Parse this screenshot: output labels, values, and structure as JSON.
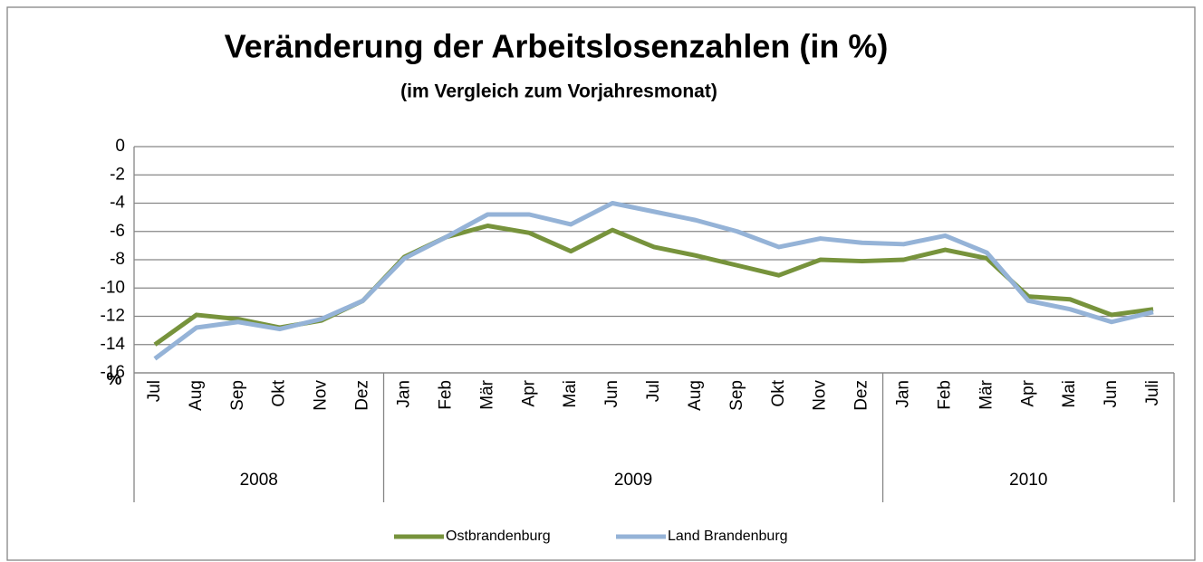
{
  "chart_data": {
    "type": "line",
    "title": "Veränderung der Arbeitslosenzahlen (in %)",
    "subtitle": "(im Vergleich zum Vorjahresmonat)",
    "y_label": "%",
    "category_groups": [
      {
        "label": "2008",
        "categories": [
          "Jul",
          "Aug",
          "Sep",
          "Okt",
          "Nov",
          "Dez"
        ]
      },
      {
        "label": "2009",
        "categories": [
          "Jan",
          "Feb",
          "Mär",
          "Apr",
          "Mai",
          "Jun",
          "Jul",
          "Aug",
          "Sep",
          "Okt",
          "Nov",
          "Dez"
        ]
      },
      {
        "label": "2010",
        "categories": [
          "Jan",
          "Feb",
          "Mär",
          "Apr",
          "Mai",
          "Jun",
          "Juli"
        ]
      }
    ],
    "series": [
      {
        "name": "Ostbrandenburg",
        "color": "#77933c",
        "values": [
          -14.0,
          -11.9,
          -12.2,
          -12.8,
          -12.3,
          -10.9,
          -7.8,
          -6.4,
          -5.6,
          -6.1,
          -7.4,
          -5.9,
          -7.1,
          -7.7,
          -8.4,
          -9.1,
          -8.0,
          -8.1,
          -8.0,
          -7.3,
          -7.9,
          -10.6,
          -10.8,
          -11.9,
          -11.5
        ]
      },
      {
        "name": "Land Brandenburg",
        "color": "#95b3d7",
        "values": [
          -15.0,
          -12.8,
          -12.4,
          -12.9,
          -12.2,
          -10.9,
          -7.9,
          -6.4,
          -4.8,
          -4.8,
          -5.5,
          -4.0,
          -4.6,
          -5.2,
          -6.0,
          -7.1,
          -6.5,
          -6.8,
          -6.9,
          -6.3,
          -7.5,
          -10.9,
          -11.5,
          -12.4,
          -11.7
        ]
      }
    ],
    "ylim": [
      -16,
      0
    ],
    "yticks": [
      -16,
      -14,
      -12,
      -10,
      -8,
      -6,
      -4,
      -2,
      0
    ],
    "grid": true,
    "legend": "bottom"
  }
}
